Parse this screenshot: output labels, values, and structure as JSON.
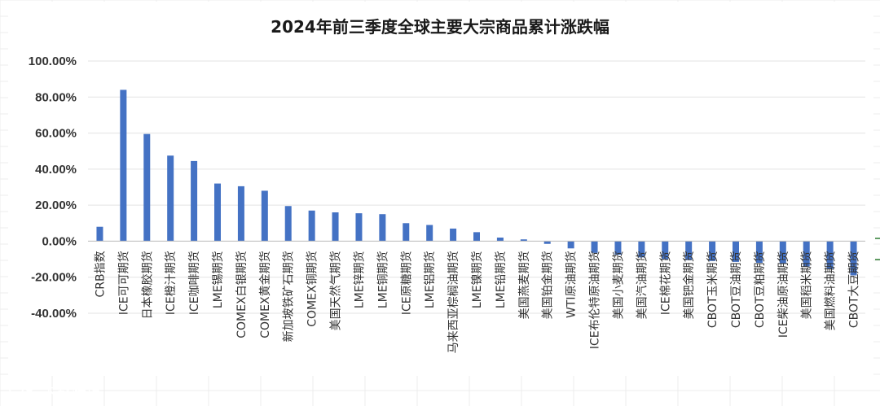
{
  "watermark": "大数跨境",
  "colors": {
    "bar": "#4472C4",
    "grid": "#e3e3e3",
    "sheet_grid": "#ececec"
  },
  "chart_data": {
    "type": "bar",
    "title": "2024年前三季度全球主要大宗商品累计涨跌幅",
    "xlabel": "",
    "ylabel": "",
    "ylim": [
      -0.4,
      1.0
    ],
    "yticks": [
      "100.00%",
      "80.00%",
      "60.00%",
      "40.00%",
      "20.00%",
      "0.00%",
      "-20.00%",
      "-40.00%"
    ],
    "grid": true,
    "legend": "none",
    "categories": [
      "CRB指数",
      "ICE可可期货",
      "日本橡胶期货",
      "ICE橙汁期货",
      "ICE咖啡期货",
      "LME锡期货",
      "COMEX白银期货",
      "COMEX黄金期货",
      "新加坡铁矿石期货",
      "COMEX铜期货",
      "美国天然气期货",
      "LME锌期货",
      "LME铜期货",
      "ICE原糖期货",
      "LME铝期货",
      "马来西亚棕榈油期货",
      "LME镍期货",
      "LME铅期货",
      "美国燕麦期货",
      "美国铂金期货",
      "WTI原油期货",
      "ICE布伦特原油期货",
      "美国小麦期货",
      "美国汽油期货",
      "ICE棉花期货",
      "美国钯金期货",
      "CBOT玉米期货",
      "CBOT豆油期货",
      "CBOT豆粕期货",
      "ICE柴油原油期货",
      "美国稻米期货",
      "美国燃料油期货",
      "CBOT大豆期货"
    ],
    "values": [
      0.08,
      0.84,
      0.595,
      0.475,
      0.445,
      0.32,
      0.305,
      0.28,
      0.195,
      0.17,
      0.16,
      0.155,
      0.15,
      0.1,
      0.09,
      0.07,
      0.05,
      0.02,
      0.01,
      -0.015,
      -0.04,
      -0.065,
      -0.075,
      -0.09,
      -0.1,
      -0.105,
      -0.11,
      -0.115,
      -0.12,
      -0.125,
      -0.14,
      -0.155,
      -0.19
    ]
  }
}
